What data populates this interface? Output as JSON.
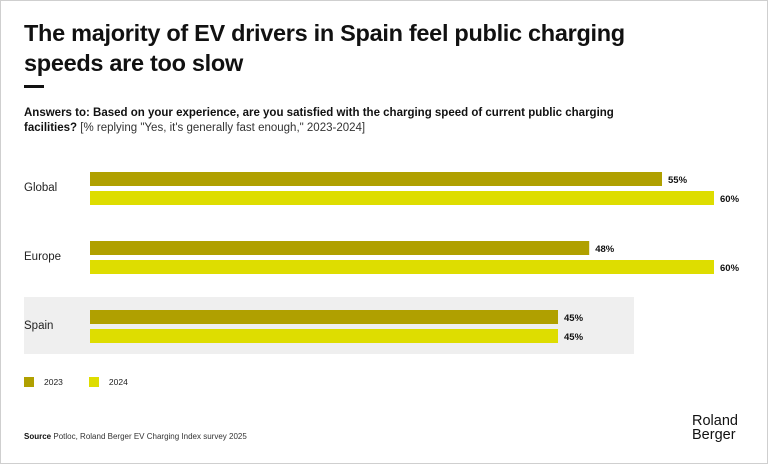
{
  "header": {
    "title": "The majority of EV drivers in Spain feel public charging speeds are too slow",
    "question": "Answers to: Based on your experience, are you satisfied with the charging speed of current public charging facilities?",
    "note": "[% replying \"Yes, it's generally fast enough,\" 2023-2024]"
  },
  "colors": {
    "2023": "#b0a000",
    "2024": "#dedd00",
    "highlight_bg": "#efefef"
  },
  "chart_data": {
    "type": "bar",
    "orientation": "horizontal",
    "title": "The majority of EV drivers in Spain feel public charging speeds are too slow",
    "categories": [
      "Global",
      "Europe",
      "Spain"
    ],
    "series": [
      {
        "name": "2023",
        "values": [
          55,
          48,
          45
        ],
        "labels": [
          "55%",
          "48%",
          "45%"
        ]
      },
      {
        "name": "2024",
        "values": [
          60,
          60,
          45
        ],
        "labels": [
          "60%",
          "60%",
          "45%"
        ]
      }
    ],
    "highlighted_category": "Spain",
    "xlabel": "",
    "ylabel": "",
    "xlim": [
      0,
      60
    ],
    "grid": false,
    "legend_position": "bottom-left"
  },
  "legend": [
    {
      "label": "2023"
    },
    {
      "label": "2024"
    }
  ],
  "footer": {
    "source_label": "Source",
    "source_text": "Potloc, Roland Berger EV Charging Index survey 2025",
    "logo_line1": "Roland",
    "logo_line2": "Berger"
  }
}
